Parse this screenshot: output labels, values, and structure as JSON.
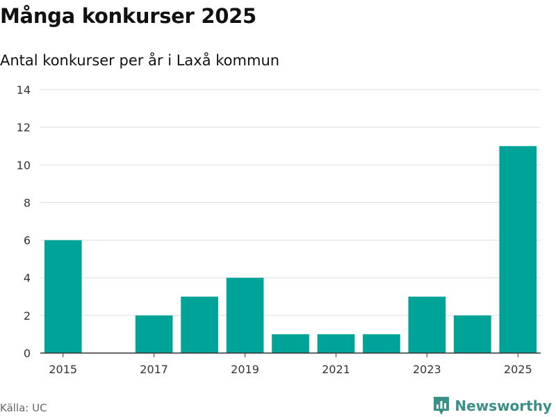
{
  "header": {
    "title": "Många konkurser 2025",
    "subtitle": "Antal konkurser per år i Laxå kommun"
  },
  "footer": {
    "source": "Källa: UC",
    "brand": "Newsworthy"
  },
  "colors": {
    "bar": "#00a398",
    "grid": "#dddddd",
    "axis": "#333333",
    "brand": "#3a8f88"
  },
  "chart_data": {
    "type": "bar",
    "categories": [
      "2015",
      "2016",
      "2017",
      "2018",
      "2019",
      "2020",
      "2021",
      "2022",
      "2023",
      "2024",
      "2025"
    ],
    "values": [
      6,
      0,
      2,
      3,
      4,
      1,
      1,
      1,
      3,
      2,
      11
    ],
    "x_tick_labels": [
      "2015",
      "2017",
      "2019",
      "2021",
      "2023",
      "2025"
    ],
    "y_ticks": [
      0,
      2,
      4,
      6,
      8,
      10,
      12,
      14
    ],
    "ylim": [
      0,
      14
    ],
    "xlabel": "",
    "ylabel": "",
    "grid": true,
    "legend": "none"
  }
}
